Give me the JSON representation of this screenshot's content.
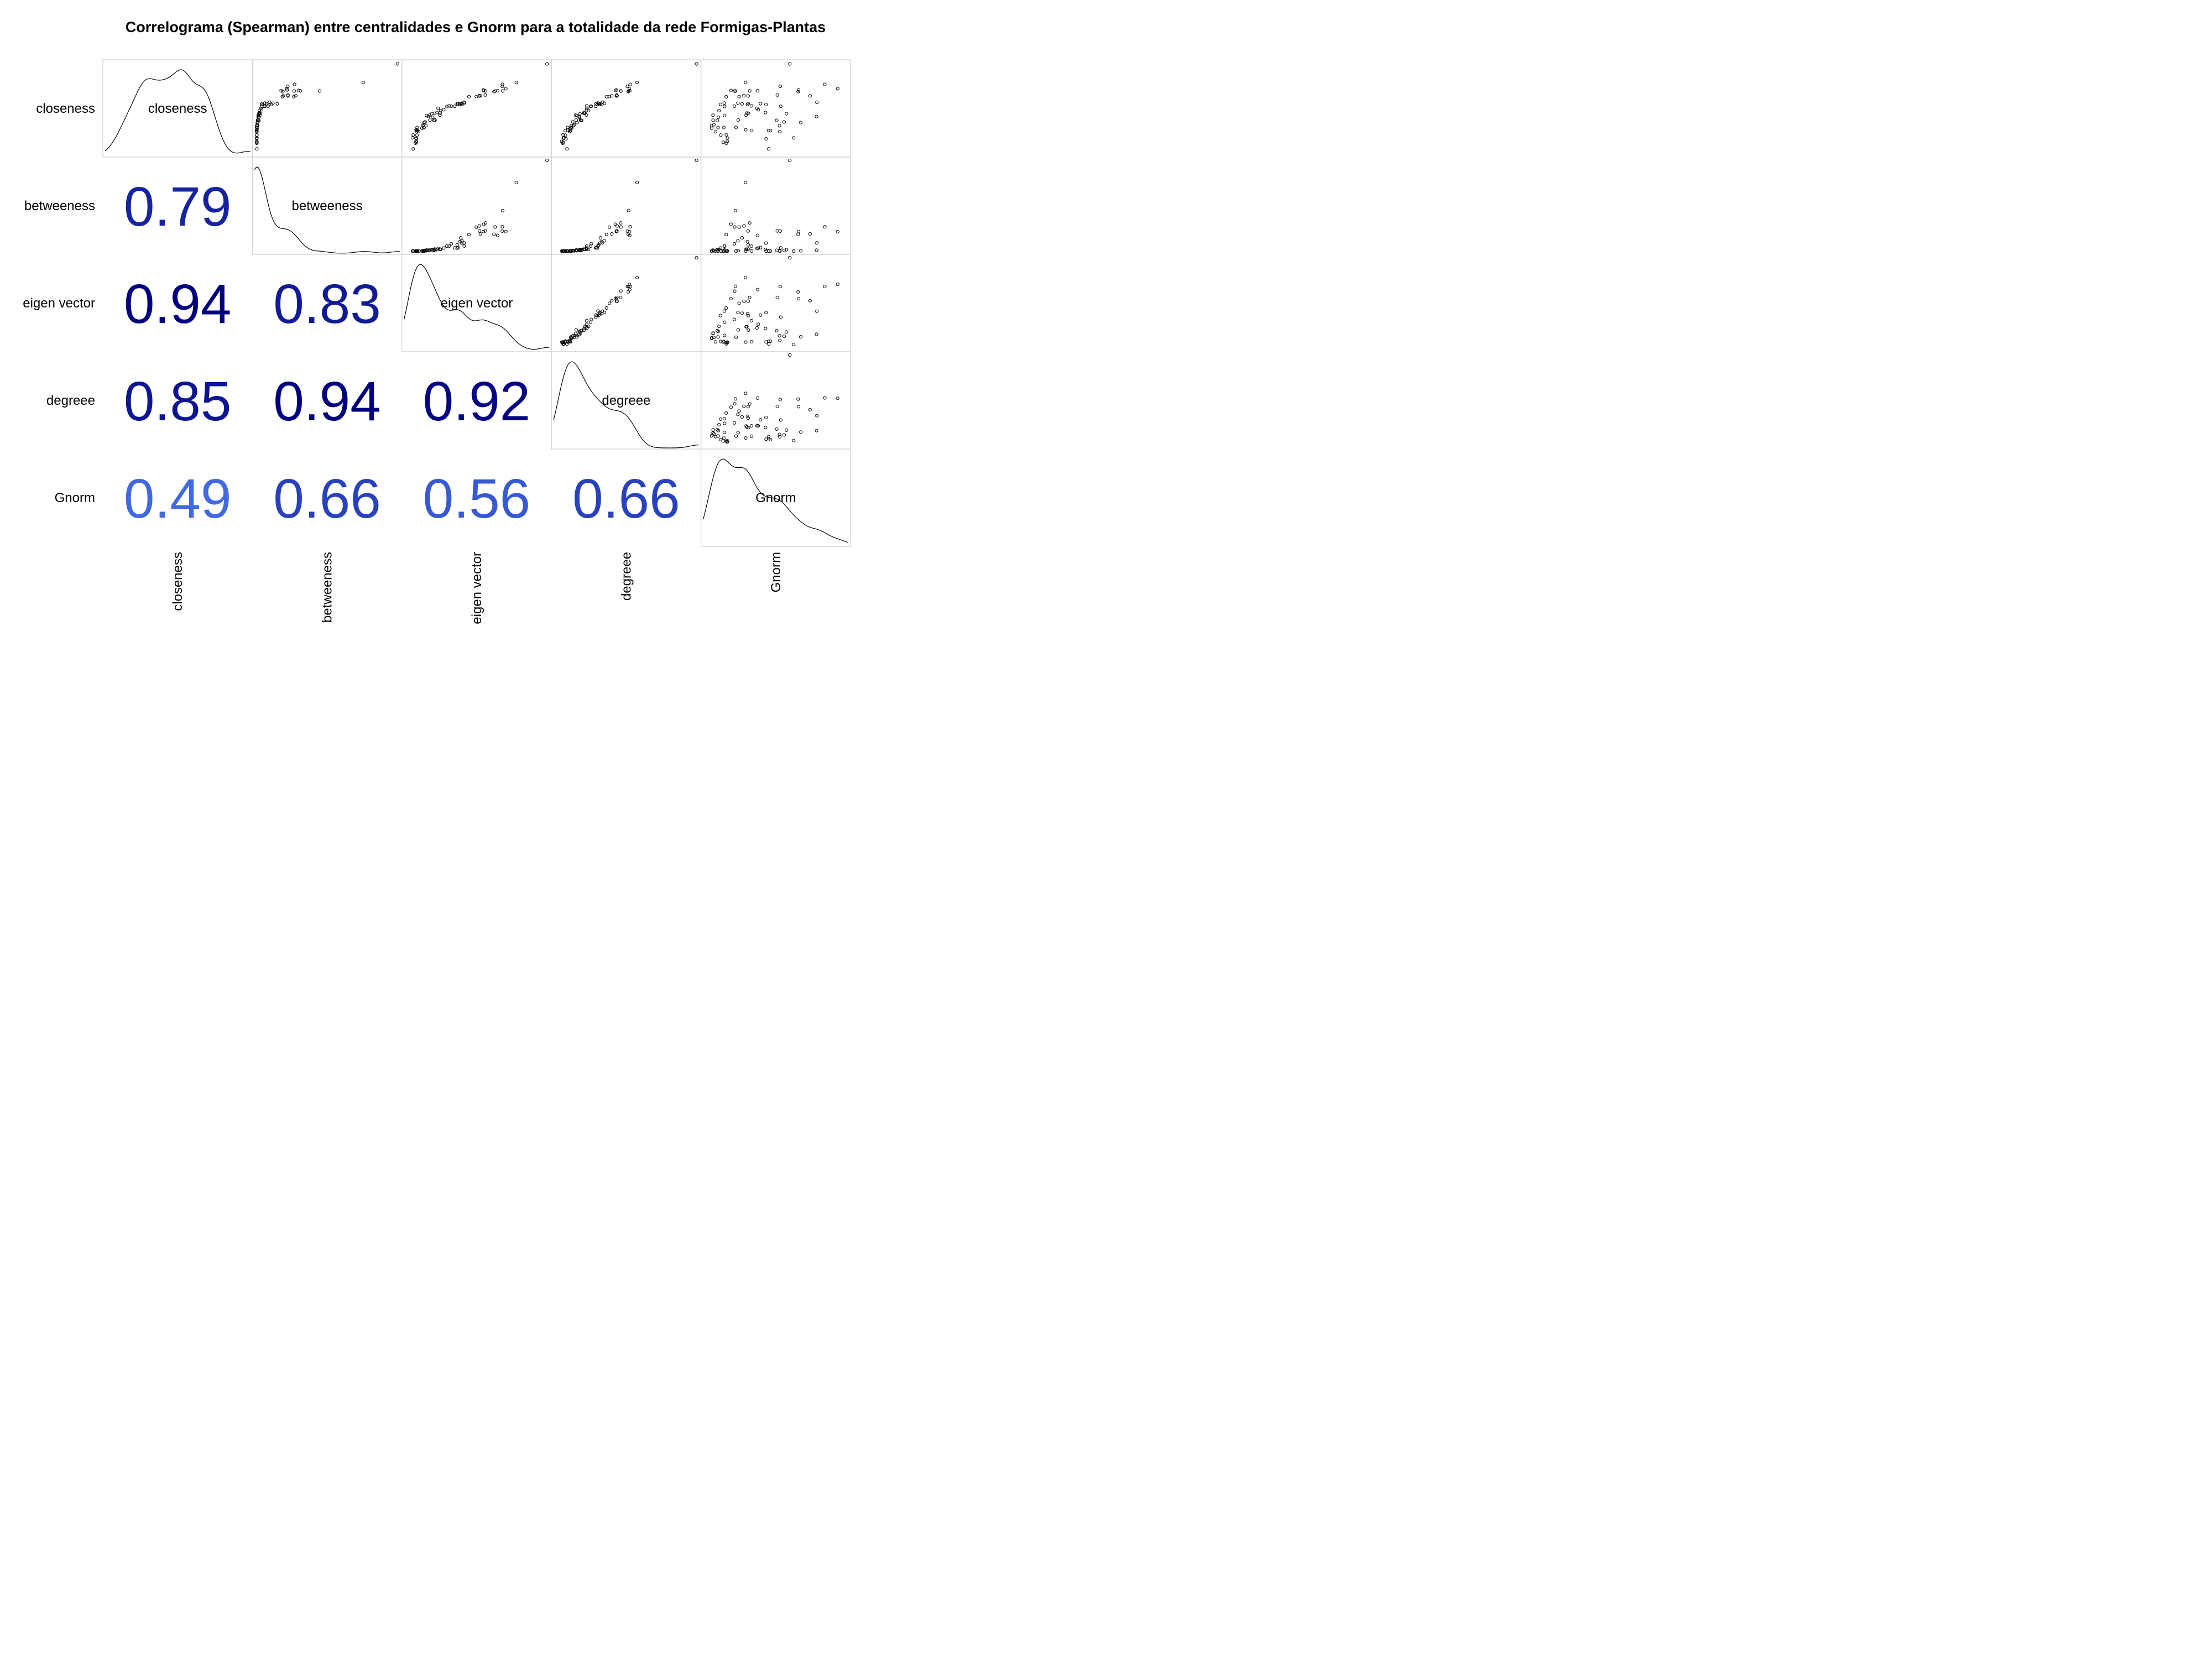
{
  "chart_data": {
    "type": "correlogram",
    "title": "Correlograma (Spearman) entre centralidades e Gnorm para a totalidade da rede Formigas-Plantas",
    "method": "Spearman",
    "variables": [
      "closeness",
      "betweeness",
      "eigen vector",
      "degreee",
      "Gnorm"
    ],
    "upper_panels": "scatter",
    "diagonal_panels": "density",
    "lower_panels": "correlation coefficient",
    "correlations": [
      {
        "row": "betweeness",
        "col": "closeness",
        "value": 0.79
      },
      {
        "row": "eigen vector",
        "col": "closeness",
        "value": 0.94
      },
      {
        "row": "eigen vector",
        "col": "betweeness",
        "value": 0.83
      },
      {
        "row": "degreee",
        "col": "closeness",
        "value": 0.85
      },
      {
        "row": "degreee",
        "col": "betweeness",
        "value": 0.94
      },
      {
        "row": "degreee",
        "col": "eigen vector",
        "value": 0.92
      },
      {
        "row": "Gnorm",
        "col": "closeness",
        "value": 0.49
      },
      {
        "row": "Gnorm",
        "col": "betweeness",
        "value": 0.66
      },
      {
        "row": "Gnorm",
        "col": "eigen vector",
        "value": 0.56
      },
      {
        "row": "Gnorm",
        "col": "degreee",
        "value": 0.66
      }
    ],
    "color_scale": {
      "low": "#4169e1",
      "high": "#00007f",
      "range": [
        0.49,
        0.94
      ]
    },
    "axes_ticks": "none",
    "grid": false,
    "legend": "none"
  }
}
